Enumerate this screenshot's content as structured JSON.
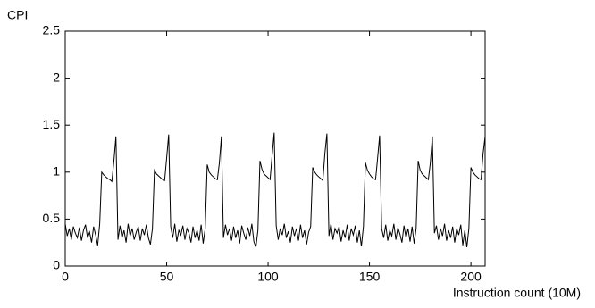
{
  "chart_data": {
    "type": "line",
    "ylabel": "CPI",
    "xlabel": "Instruction count (10M)",
    "xlim": [
      0,
      207
    ],
    "ylim": [
      0,
      2.5
    ],
    "xticks": [
      0,
      50,
      100,
      150,
      200
    ],
    "yticks": [
      0,
      0.5,
      1,
      1.5,
      2,
      2.5
    ],
    "x": [
      0,
      1,
      2,
      3,
      4,
      5,
      6,
      7,
      8,
      9,
      10,
      11,
      12,
      13,
      14,
      15,
      16,
      17,
      18,
      19,
      20,
      21,
      22,
      23,
      24,
      25,
      26,
      27,
      28,
      29,
      30,
      31,
      32,
      33,
      34,
      35,
      36,
      37,
      38,
      39,
      40,
      41,
      42,
      43,
      44,
      45,
      46,
      47,
      48,
      49,
      50,
      51,
      52,
      53,
      54,
      55,
      56,
      57,
      58,
      59,
      60,
      61,
      62,
      63,
      64,
      65,
      66,
      67,
      68,
      69,
      70,
      71,
      72,
      73,
      74,
      75,
      76,
      77,
      78,
      79,
      80,
      81,
      82,
      83,
      84,
      85,
      86,
      87,
      88,
      89,
      90,
      91,
      92,
      93,
      94,
      95,
      96,
      97,
      98,
      99,
      100,
      101,
      102,
      103,
      104,
      105,
      106,
      107,
      108,
      109,
      110,
      111,
      112,
      113,
      114,
      115,
      116,
      117,
      118,
      119,
      120,
      121,
      122,
      123,
      124,
      125,
      126,
      127,
      128,
      129,
      130,
      131,
      132,
      133,
      134,
      135,
      136,
      137,
      138,
      139,
      140,
      141,
      142,
      143,
      144,
      145,
      146,
      147,
      148,
      149,
      150,
      151,
      152,
      153,
      154,
      155,
      156,
      157,
      158,
      159,
      160,
      161,
      162,
      163,
      164,
      165,
      166,
      167,
      168,
      169,
      170,
      171,
      172,
      173,
      174,
      175,
      176,
      177,
      178,
      179,
      180,
      181,
      182,
      183,
      184,
      185,
      186,
      187,
      188,
      189,
      190,
      191,
      192,
      193,
      194,
      195,
      196,
      197,
      198,
      199,
      200,
      201,
      202,
      203,
      204,
      205,
      206,
      207
    ],
    "series": [
      {
        "color": "#000000",
        "values": [
          0.45,
          0.32,
          0.4,
          0.28,
          0.42,
          0.35,
          0.3,
          0.41,
          0.27,
          0.38,
          0.44,
          0.3,
          0.36,
          0.25,
          0.42,
          0.33,
          0.22,
          0.45,
          1.0,
          0.97,
          0.95,
          0.93,
          0.92,
          0.9,
          1.12,
          1.38,
          0.28,
          0.43,
          0.3,
          0.38,
          0.25,
          0.45,
          0.32,
          0.4,
          0.28,
          0.36,
          0.42,
          0.27,
          0.4,
          0.33,
          0.44,
          0.3,
          0.23,
          0.4,
          1.02,
          0.98,
          0.96,
          0.94,
          0.92,
          0.91,
          1.15,
          1.4,
          0.42,
          0.3,
          0.45,
          0.26,
          0.38,
          0.33,
          0.43,
          0.28,
          0.4,
          0.35,
          0.25,
          0.42,
          0.3,
          0.38,
          0.27,
          0.44,
          0.24,
          0.4,
          1.08,
          1.0,
          0.97,
          0.95,
          0.93,
          0.92,
          1.1,
          1.38,
          0.3,
          0.44,
          0.33,
          0.4,
          0.27,
          0.42,
          0.3,
          0.38,
          0.24,
          0.43,
          0.35,
          0.28,
          0.41,
          0.32,
          0.45,
          0.26,
          0.2,
          0.38,
          1.12,
          1.03,
          0.98,
          0.96,
          0.94,
          0.92,
          1.18,
          1.42,
          0.43,
          0.28,
          0.4,
          0.33,
          0.45,
          0.3,
          0.37,
          0.25,
          0.42,
          0.32,
          0.4,
          0.27,
          0.44,
          0.3,
          0.38,
          0.23,
          0.36,
          0.42,
          1.05,
          1.0,
          0.97,
          0.95,
          0.93,
          0.91,
          1.2,
          1.41,
          0.32,
          0.45,
          0.28,
          0.4,
          0.35,
          0.42,
          0.26,
          0.38,
          0.3,
          0.44,
          0.27,
          0.4,
          0.33,
          0.43,
          0.25,
          0.38,
          0.21,
          0.42,
          1.1,
          1.02,
          0.98,
          0.95,
          0.93,
          0.92,
          1.15,
          1.39,
          0.4,
          0.3,
          0.44,
          0.27,
          0.38,
          0.32,
          0.45,
          0.28,
          0.41,
          0.34,
          0.25,
          0.43,
          0.3,
          0.4,
          0.26,
          0.42,
          0.24,
          0.4,
          1.12,
          1.02,
          0.98,
          0.96,
          0.94,
          0.92,
          1.1,
          1.38,
          0.35,
          0.43,
          0.28,
          0.4,
          0.32,
          0.45,
          0.27,
          0.38,
          0.3,
          0.42,
          0.25,
          0.4,
          0.33,
          0.44,
          0.22,
          0.38,
          0.2,
          0.4,
          1.05,
          1.0,
          0.97,
          0.95,
          0.93,
          0.92,
          1.2,
          1.38
        ]
      }
    ]
  }
}
